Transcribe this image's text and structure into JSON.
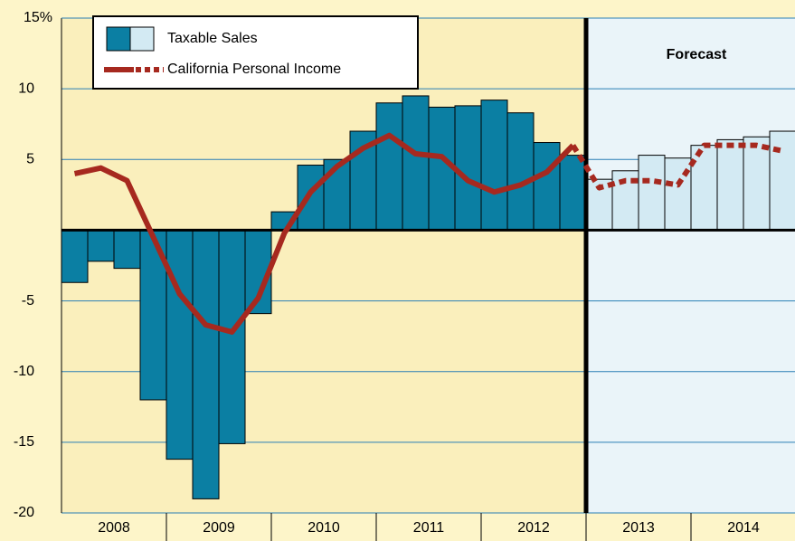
{
  "chart_data": {
    "type": "bar_line",
    "categories": [
      "2008",
      "2009",
      "2010",
      "2011",
      "2012",
      "2013",
      "2014"
    ],
    "series": [
      {
        "name": "Taxable Sales",
        "type": "bar",
        "color": "#0b7fa3",
        "forecast_color": "#d3eaf3",
        "values": [
          [
            -3.7,
            -2.2,
            -2.7,
            -12.0
          ],
          [
            -16.2,
            -19.0,
            -15.1,
            -5.9
          ],
          [
            1.3,
            4.6,
            5.0,
            7.0
          ],
          [
            9.0,
            9.5,
            8.7,
            8.8
          ],
          [
            9.2,
            8.3,
            6.2,
            5.3
          ],
          [
            3.6,
            4.2,
            5.3,
            5.1
          ],
          [
            6.0,
            6.4,
            6.6,
            7.0
          ]
        ]
      },
      {
        "name": "California Personal Income",
        "type": "line",
        "color": "#a6291f",
        "values": [
          [
            4.0,
            4.4,
            3.5,
            -0.5
          ],
          [
            -4.5,
            -6.7,
            -7.2,
            -4.8
          ],
          [
            -0.2,
            2.7,
            4.5,
            5.8
          ],
          [
            6.7,
            5.4,
            5.2,
            3.5
          ],
          [
            2.7,
            3.2,
            4.1,
            6.0
          ],
          [
            3.0,
            3.5,
            3.5,
            3.2
          ],
          [
            6.0,
            6.0,
            6.0,
            5.6
          ]
        ]
      }
    ],
    "forecast": {
      "text": "Forecast",
      "from": "2013"
    },
    "ylim": [
      -20,
      15
    ],
    "yticks": [
      {
        "value": 15,
        "label": "15%"
      },
      10,
      5,
      -5,
      -10,
      -15,
      -20
    ],
    "grid": true,
    "legend": "upper left"
  }
}
